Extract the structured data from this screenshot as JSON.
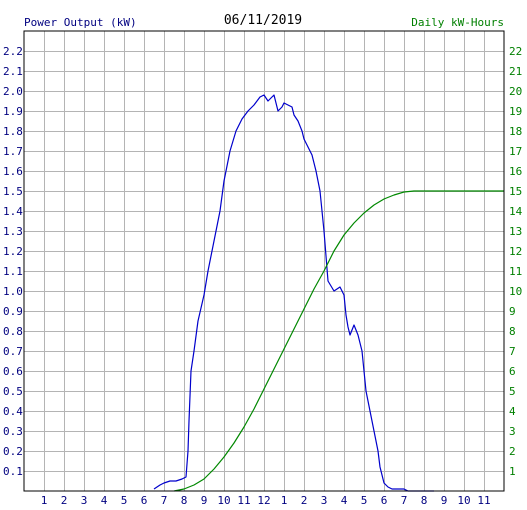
{
  "chart_data": {
    "type": "line",
    "title": "06/11/2019",
    "left_axis_label": "Power Output (kW)",
    "right_axis_label": "Daily kW-Hours",
    "x_tick_labels": [
      "1",
      "2",
      "3",
      "4",
      "5",
      "6",
      "7",
      "8",
      "9",
      "10",
      "11",
      "12",
      "1",
      "2",
      "3",
      "4",
      "5",
      "6",
      "7",
      "8",
      "9",
      "10",
      "11"
    ],
    "y_left_ticks": [
      0.1,
      0.2,
      0.3,
      0.4,
      0.5,
      0.6,
      0.7,
      0.8,
      0.9,
      1.0,
      1.1,
      1.2,
      1.3,
      1.4,
      1.5,
      1.6,
      1.7,
      1.8,
      1.9,
      2.0,
      2.1,
      2.2
    ],
    "y_right_ticks": [
      1,
      2,
      3,
      4,
      5,
      6,
      7,
      8,
      9,
      10,
      11,
      12,
      13,
      14,
      15,
      16,
      17,
      18,
      19,
      20,
      21,
      22
    ],
    "x_range_hours": [
      0,
      24
    ],
    "y_left_range": [
      0,
      2.3
    ],
    "y_right_range": [
      0,
      23
    ],
    "grid": true,
    "colors": {
      "power": "#0000cc",
      "energy": "#008800",
      "axis_left_text": "#000080",
      "axis_right_text": "#008000",
      "grid": "#b4b4b4",
      "title": "#000000"
    },
    "series": [
      {
        "axis": "left",
        "x": [
          6.5,
          6.8,
          7.0,
          7.3,
          7.6,
          7.9,
          8.1,
          8.2,
          8.25,
          8.35,
          8.5,
          8.7,
          9.0,
          9.2,
          9.5,
          9.8,
          10.0,
          10.3,
          10.6,
          10.9,
          11.2,
          11.5,
          11.8,
          12.0,
          12.2,
          12.5,
          12.7,
          12.9,
          13.0,
          13.2,
          13.4,
          13.5,
          13.7,
          13.9,
          14.0,
          14.2,
          14.4,
          14.6,
          14.8,
          15.0,
          15.2,
          15.5,
          15.8,
          16.0,
          16.1,
          16.2,
          16.3,
          16.5,
          16.7,
          16.9,
          17.0,
          17.1,
          17.3,
          17.5,
          17.7,
          17.8,
          17.9,
          18.0,
          18.2,
          18.4,
          18.6,
          18.8,
          19.0,
          19.2,
          19.4,
          19.6,
          19.8,
          20.0,
          20.3,
          20.5
        ],
        "y": [
          0.01,
          0.03,
          0.04,
          0.05,
          0.05,
          0.06,
          0.07,
          0.2,
          0.35,
          0.6,
          0.7,
          0.85,
          0.98,
          1.1,
          1.25,
          1.4,
          1.55,
          1.7,
          1.8,
          1.86,
          1.9,
          1.93,
          1.97,
          1.98,
          1.95,
          1.98,
          1.9,
          1.92,
          1.94,
          1.93,
          1.92,
          1.88,
          1.85,
          1.8,
          1.76,
          1.72,
          1.68,
          1.6,
          1.5,
          1.3,
          1.05,
          1.0,
          1.02,
          0.98,
          0.88,
          0.82,
          0.78,
          0.83,
          0.78,
          0.7,
          0.6,
          0.5,
          0.4,
          0.3,
          0.2,
          0.12,
          0.08,
          0.04,
          0.02,
          0.01,
          0.01,
          0.01,
          0.01,
          0.0,
          0.0,
          0.0,
          0.0,
          0.0,
          0.0,
          0.0
        ]
      },
      {
        "axis": "right",
        "x": [
          7.5,
          8.0,
          8.5,
          9.0,
          9.5,
          10.0,
          10.5,
          11.0,
          11.5,
          12.0,
          12.5,
          13.0,
          13.5,
          14.0,
          14.5,
          15.0,
          15.5,
          16.0,
          16.5,
          17.0,
          17.5,
          18.0,
          18.5,
          19.0,
          19.5,
          20.0,
          21.0,
          22.0,
          23.0,
          24.0
        ],
        "y": [
          0.0,
          0.1,
          0.3,
          0.6,
          1.1,
          1.7,
          2.4,
          3.2,
          4.1,
          5.1,
          6.1,
          7.1,
          8.1,
          9.1,
          10.1,
          11.0,
          12.0,
          12.8,
          13.4,
          13.9,
          14.3,
          14.6,
          14.8,
          14.95,
          15.0,
          15.0,
          15.0,
          15.0,
          15.0,
          15.0
        ]
      }
    ]
  }
}
